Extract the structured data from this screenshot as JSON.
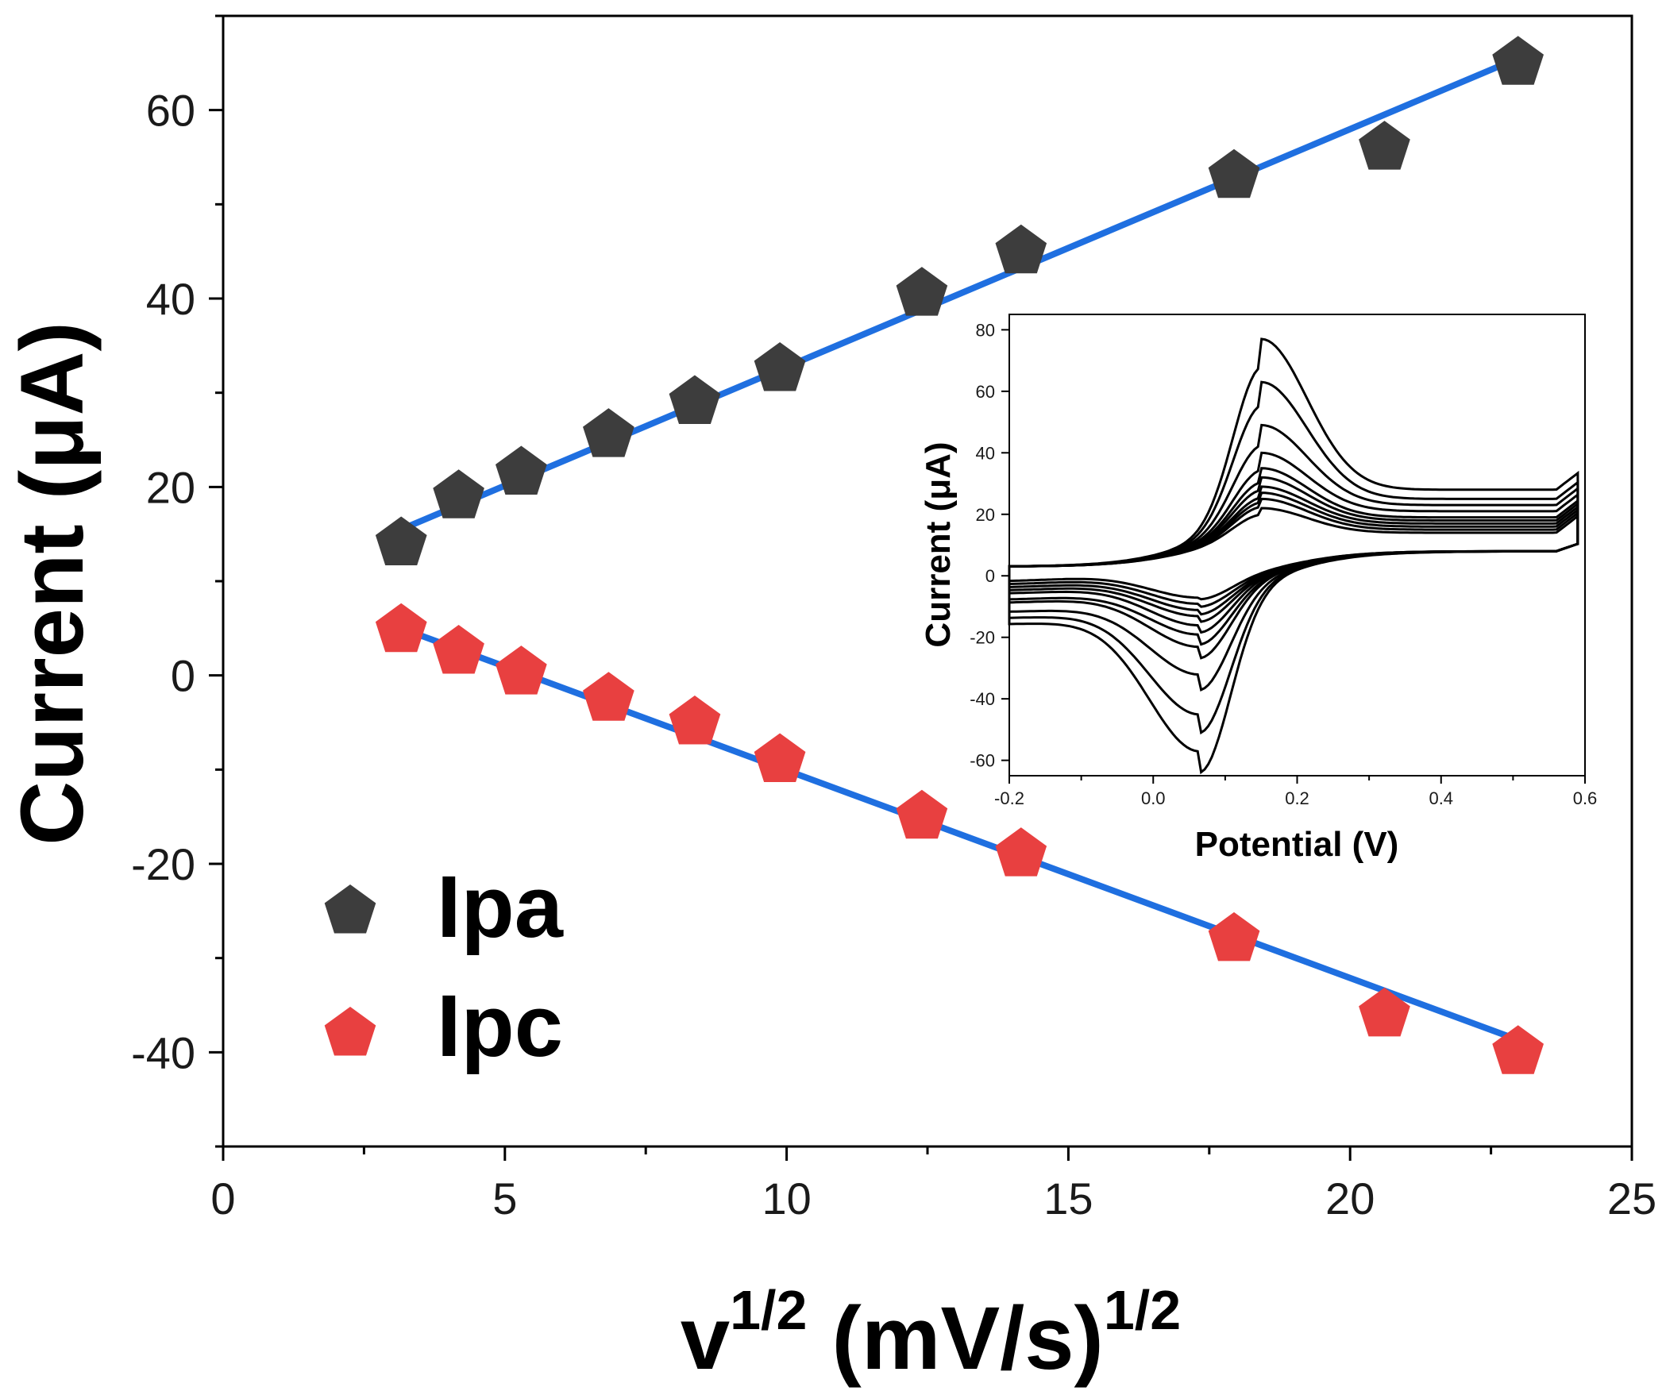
{
  "chart_data": [
    {
      "type": "scatter",
      "title": "",
      "xlabel": "v",
      "xlabel_sup": "1/2",
      "xlabel_rest": " (mV/s)",
      "xlabel_sup2": "1/2",
      "ylabel": "Current (μA)",
      "xlim": [
        0,
        25
      ],
      "ylim": [
        -50,
        70
      ],
      "xticks": [
        "0",
        "5",
        "10",
        "15",
        "20",
        "25"
      ],
      "yticks": [
        "-40",
        "-20",
        "0",
        "20",
        "40",
        "60"
      ],
      "legend_position": "bottom-left",
      "series": [
        {
          "name": "Ipa",
          "color": "#3d3d3d",
          "marker": "pentagon",
          "x": [
            3.16,
            4.18,
            5.29,
            6.84,
            8.37,
            9.88,
            12.4,
            14.16,
            17.94,
            20.61,
            22.98
          ],
          "y": [
            14.0,
            19.0,
            21.5,
            25.5,
            29.0,
            32.5,
            40.5,
            45.0,
            53.0,
            56.0,
            65.0
          ]
        },
        {
          "name": "Ipc",
          "color": "#e84040",
          "marker": "pentagon",
          "x": [
            3.16,
            4.18,
            5.29,
            6.84,
            8.37,
            9.88,
            12.4,
            14.16,
            17.94,
            20.61,
            22.98
          ],
          "y": [
            4.8,
            2.5,
            0.3,
            -2.5,
            -5.0,
            -9.0,
            -15.0,
            -19.0,
            -28.0,
            -36.0,
            -40.0
          ]
        }
      ],
      "fits": [
        {
          "name": "Ipa fit",
          "color": "#1f6fe0",
          "x": [
            3.16,
            22.98
          ],
          "y": [
            15.5,
            65.5
          ]
        },
        {
          "name": "Ipc fit",
          "color": "#1f6fe0",
          "x": [
            3.16,
            23.35
          ],
          "y": [
            5.0,
            -39.5
          ]
        }
      ]
    },
    {
      "type": "line",
      "title": "",
      "xlabel": "Potential (V)",
      "ylabel": "Current (μA)",
      "xlim": [
        -0.2,
        0.6
      ],
      "ylim": [
        -65,
        85
      ],
      "xticks": [
        "-0.2",
        "0.0",
        "0.2",
        "0.4",
        "0.6"
      ],
      "yticks": [
        "-60",
        "-40",
        "-20",
        "0",
        "20",
        "40",
        "60",
        "80"
      ],
      "curve_color": "#000000",
      "cv_curves": [
        {
          "ipa": 22,
          "ipc": -7,
          "base_top": 14,
          "base_bottom": 1
        },
        {
          "ipa": 25,
          "ipc": -9,
          "base_top": 15,
          "base_bottom": 0
        },
        {
          "ipa": 27,
          "ipc": -11,
          "base_top": 16,
          "base_bottom": -1
        },
        {
          "ipa": 29,
          "ipc": -13,
          "base_top": 17,
          "base_bottom": -2
        },
        {
          "ipa": 32,
          "ipc": -16,
          "base_top": 18,
          "base_bottom": -3
        },
        {
          "ipa": 35,
          "ipc": -19,
          "base_top": 19,
          "base_bottom": -5
        },
        {
          "ipa": 40,
          "ipc": -23,
          "base_top": 21,
          "base_bottom": -6
        },
        {
          "ipa": 49,
          "ipc": -32,
          "base_top": 23,
          "base_bottom": -9
        },
        {
          "ipa": 63,
          "ipc": -45,
          "base_top": 25,
          "base_bottom": -11
        },
        {
          "ipa": 77,
          "ipc": -57,
          "base_top": 28,
          "base_bottom": -13
        }
      ]
    }
  ]
}
